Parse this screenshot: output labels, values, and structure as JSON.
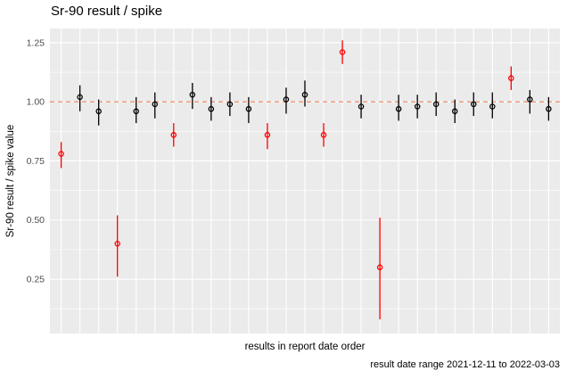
{
  "colors": {
    "panel_bg": "#EBEBEB",
    "grid": "#FFFFFF",
    "reference_line": "#F09472",
    "point_normal": "#000000",
    "point_flagged": "#FF0000",
    "tick_text": "#4D4D4D",
    "title_text": "#000000"
  },
  "chart_data": {
    "type": "scatter",
    "subtype": "pointrange",
    "title": "Sr-90 result / spike",
    "xlabel": "results in report date order",
    "ylabel": "Sr-90 result / spike value",
    "caption": "result date range 2021-12-11 to 2022-03-03",
    "legend": "none",
    "grid": "on",
    "x_axis": {
      "type": "ordinal",
      "tick_labels": "none",
      "n_points": 27
    },
    "ylim": [
      0.02,
      1.31
    ],
    "yticks": [
      0.25,
      0.5,
      0.75,
      1.0,
      1.25
    ],
    "ytick_labels": [
      "0.25",
      "0.50",
      "0.75",
      "1.00",
      "1.25"
    ],
    "yticks_minor": [
      0.125,
      0.375,
      0.625,
      0.875,
      1.125
    ],
    "reference_line": {
      "y": 1.0,
      "style": "dashed"
    },
    "points": [
      {
        "x": 1,
        "y": 0.78,
        "ymin": 0.72,
        "ymax": 0.83,
        "color": "red"
      },
      {
        "x": 2,
        "y": 1.02,
        "ymin": 0.96,
        "ymax": 1.07,
        "color": "black"
      },
      {
        "x": 3,
        "y": 0.96,
        "ymin": 0.9,
        "ymax": 1.01,
        "color": "black"
      },
      {
        "x": 4,
        "y": 0.4,
        "ymin": 0.26,
        "ymax": 0.52,
        "color": "red"
      },
      {
        "x": 5,
        "y": 0.96,
        "ymin": 0.91,
        "ymax": 1.02,
        "color": "black"
      },
      {
        "x": 6,
        "y": 0.99,
        "ymin": 0.93,
        "ymax": 1.04,
        "color": "black"
      },
      {
        "x": 7,
        "y": 0.86,
        "ymin": 0.81,
        "ymax": 0.91,
        "color": "red"
      },
      {
        "x": 8,
        "y": 1.03,
        "ymin": 0.97,
        "ymax": 1.08,
        "color": "black"
      },
      {
        "x": 9,
        "y": 0.97,
        "ymin": 0.92,
        "ymax": 1.02,
        "color": "black"
      },
      {
        "x": 10,
        "y": 0.99,
        "ymin": 0.94,
        "ymax": 1.04,
        "color": "black"
      },
      {
        "x": 11,
        "y": 0.97,
        "ymin": 0.91,
        "ymax": 1.02,
        "color": "black"
      },
      {
        "x": 12,
        "y": 0.86,
        "ymin": 0.8,
        "ymax": 0.91,
        "color": "red"
      },
      {
        "x": 13,
        "y": 1.01,
        "ymin": 0.95,
        "ymax": 1.06,
        "color": "black"
      },
      {
        "x": 14,
        "y": 1.03,
        "ymin": 0.98,
        "ymax": 1.09,
        "color": "black"
      },
      {
        "x": 15,
        "y": 0.86,
        "ymin": 0.81,
        "ymax": 0.91,
        "color": "red"
      },
      {
        "x": 16,
        "y": 1.21,
        "ymin": 1.16,
        "ymax": 1.26,
        "color": "red"
      },
      {
        "x": 17,
        "y": 0.98,
        "ymin": 0.93,
        "ymax": 1.03,
        "color": "black"
      },
      {
        "x": 18,
        "y": 0.3,
        "ymin": 0.08,
        "ymax": 0.51,
        "color": "red"
      },
      {
        "x": 19,
        "y": 0.97,
        "ymin": 0.92,
        "ymax": 1.03,
        "color": "black"
      },
      {
        "x": 20,
        "y": 0.98,
        "ymin": 0.93,
        "ymax": 1.03,
        "color": "black"
      },
      {
        "x": 21,
        "y": 0.99,
        "ymin": 0.94,
        "ymax": 1.04,
        "color": "black"
      },
      {
        "x": 22,
        "y": 0.96,
        "ymin": 0.91,
        "ymax": 1.01,
        "color": "black"
      },
      {
        "x": 23,
        "y": 0.99,
        "ymin": 0.94,
        "ymax": 1.04,
        "color": "black"
      },
      {
        "x": 24,
        "y": 0.98,
        "ymin": 0.93,
        "ymax": 1.04,
        "color": "black"
      },
      {
        "x": 25,
        "y": 1.1,
        "ymin": 1.05,
        "ymax": 1.15,
        "color": "red"
      },
      {
        "x": 26,
        "y": 1.01,
        "ymin": 0.95,
        "ymax": 1.05,
        "color": "black"
      },
      {
        "x": 27,
        "y": 0.97,
        "ymin": 0.92,
        "ymax": 1.02,
        "color": "black"
      }
    ]
  }
}
